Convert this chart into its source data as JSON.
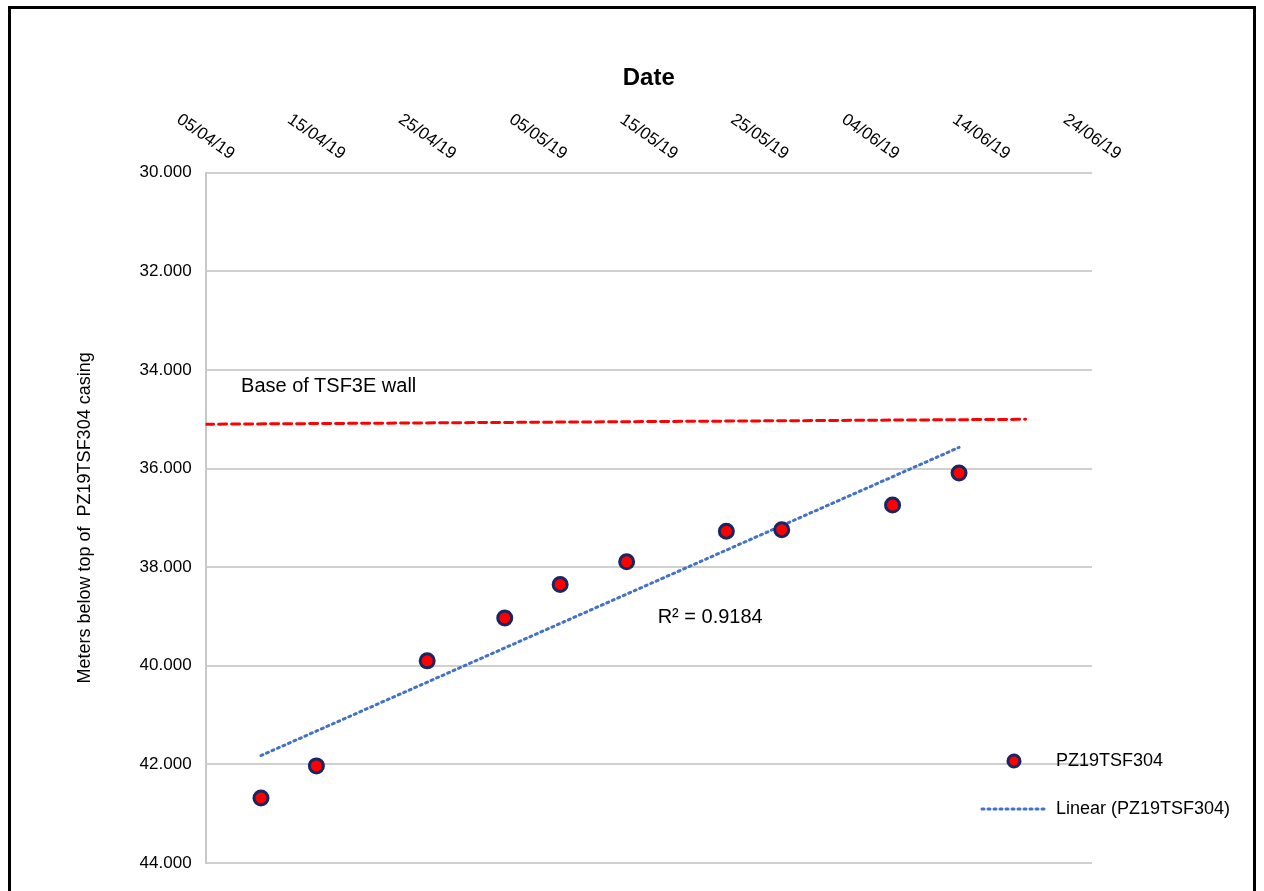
{
  "chart_data": {
    "type": "scatter",
    "xlabel": "Date",
    "ylabel": "Meters below top of  PZ19TSF304 casing",
    "series": [
      {
        "name": "PZ19TSF304",
        "color": "#ff0000",
        "marker": "circle",
        "x": [
          "--04-10",
          "--04-15",
          "--04-25",
          "--05-02",
          "--05-07",
          "--05-13",
          "--05-22",
          "--05-27",
          "--06-06",
          "--06-12"
        ],
        "values": [
          42.68,
          42.03,
          39.9,
          39.03,
          38.35,
          37.89,
          37.27,
          37.24,
          36.74,
          36.09
        ]
      },
      {
        "name": "Linear (PZ19TSF304)",
        "type": "line",
        "color": "#4472c4",
        "line_style": "dotted",
        "x": [
          "--04-10",
          "--06-12"
        ],
        "values": [
          41.82,
          35.57
        ]
      },
      {
        "type": "line",
        "color": "#ff0000",
        "line_style": "dashed",
        "x": [
          "--04-05",
          "--06-18"
        ],
        "values": [
          35.1,
          35.0
        ]
      }
    ],
    "annotations": [
      "Base of TSF3E wall",
      "R² = 0.9184"
    ],
    "xlim": [
      "--04-05",
      "--06-24"
    ],
    "xticks": [
      {
        "value": "--04-05",
        "label": "05/04/19"
      },
      {
        "value": "--04-15",
        "label": "15/04/19"
      },
      {
        "value": "--04-25",
        "label": "25/04/19"
      },
      {
        "value": "--05-05",
        "label": "05/05/19"
      },
      {
        "value": "--05-15",
        "label": "15/05/19"
      },
      {
        "value": "--05-25",
        "label": "25/05/19"
      },
      {
        "value": "--06-04",
        "label": "04/06/19"
      },
      {
        "value": "--06-14",
        "label": "14/06/19"
      },
      {
        "value": "--06-24",
        "label": "24/06/19"
      }
    ],
    "ylim": [
      44,
      30
    ],
    "yticks": [
      {
        "value": 30,
        "label": "30.000"
      },
      {
        "value": 32,
        "label": "32.000"
      },
      {
        "value": 34,
        "label": "34.000"
      },
      {
        "value": 36,
        "label": "36.000"
      },
      {
        "value": 38,
        "label": "38.000"
      },
      {
        "value": 40,
        "label": "40.000"
      },
      {
        "value": 42,
        "label": "42.000"
      },
      {
        "value": 44,
        "label": "44.000"
      }
    ],
    "grid": "y",
    "legend": "bottom right"
  }
}
